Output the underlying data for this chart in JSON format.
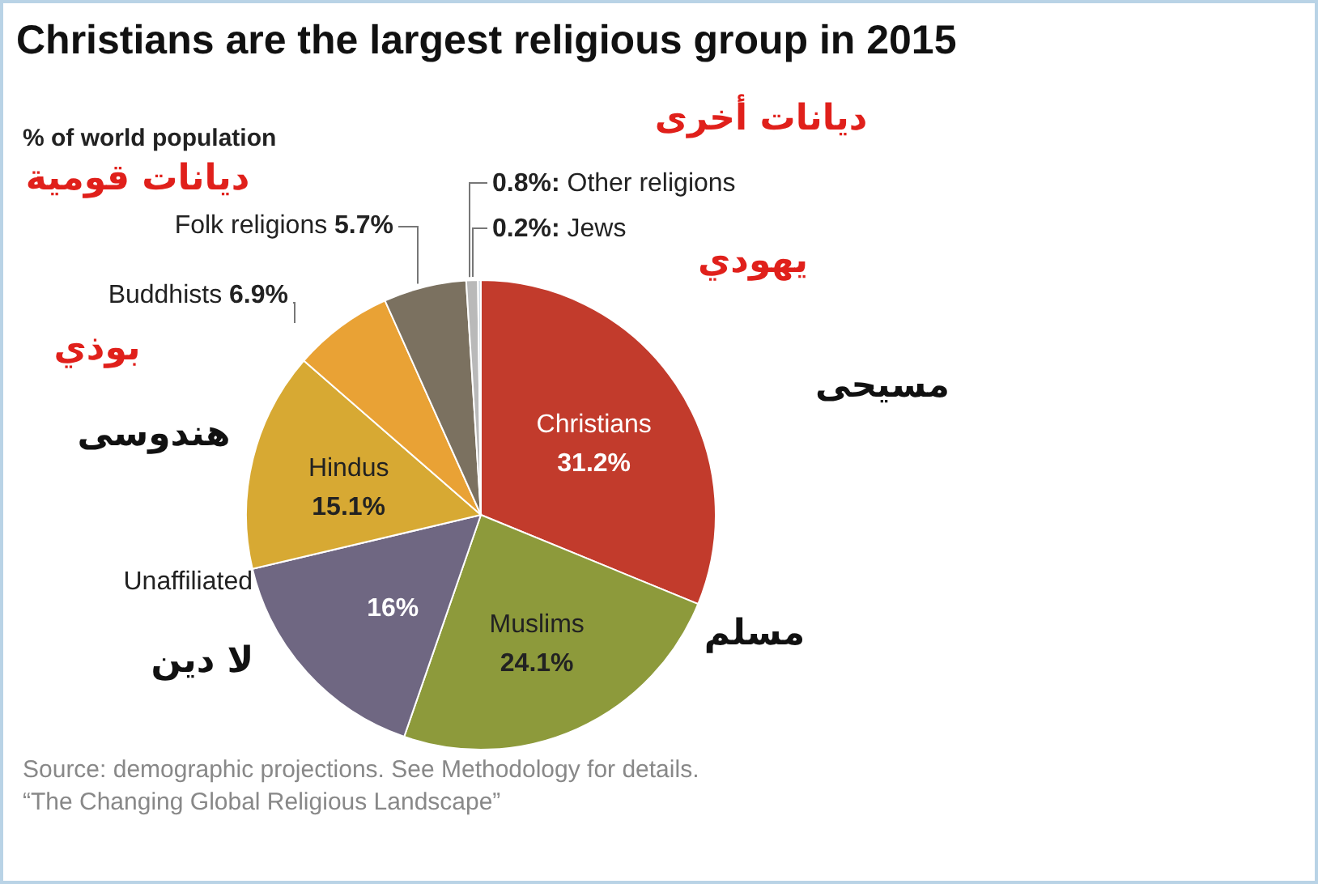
{
  "chart_data": {
    "type": "pie",
    "title": "Christians are the largest religious group in 2015",
    "subtitle": "% of world population",
    "categories": [
      "Christians",
      "Muslims",
      "Unaffiliated",
      "Hindus",
      "Buddhists",
      "Folk religions",
      "Other religions",
      "Jews"
    ],
    "values": [
      31.2,
      24.1,
      16,
      15.1,
      6.9,
      5.7,
      0.8,
      0.2
    ],
    "value_labels": [
      "31.2%",
      "24.1%",
      "16%",
      "15.1%",
      "6.9%",
      "5.7%",
      "0.8%:",
      "0.2%:"
    ],
    "colors": [
      "#c23b2c",
      "#8d9a3b",
      "#6f6782",
      "#d7a933",
      "#e9a235",
      "#7b7160",
      "#b9b9b9",
      "#d3dbe3"
    ],
    "annotations": [
      {
        "text": "مسيحى",
        "x": "Christians"
      },
      {
        "text": "مسلم",
        "x": "Muslims"
      },
      {
        "text": "لا دين",
        "x": "Unaffiliated"
      },
      {
        "text": "هندوسى",
        "x": "Hindus"
      },
      {
        "text": "بوذي",
        "x": "Buddhists"
      },
      {
        "text": "ديانات قومية",
        "x": "Folk religions"
      },
      {
        "text": "ديانات أخرى",
        "x": "Other religions"
      },
      {
        "text": "يهودي",
        "x": "Jews"
      },
      "Source: demographic projections. See Methodology for details.",
      "“The Changing Global Religious Landscape”"
    ]
  }
}
